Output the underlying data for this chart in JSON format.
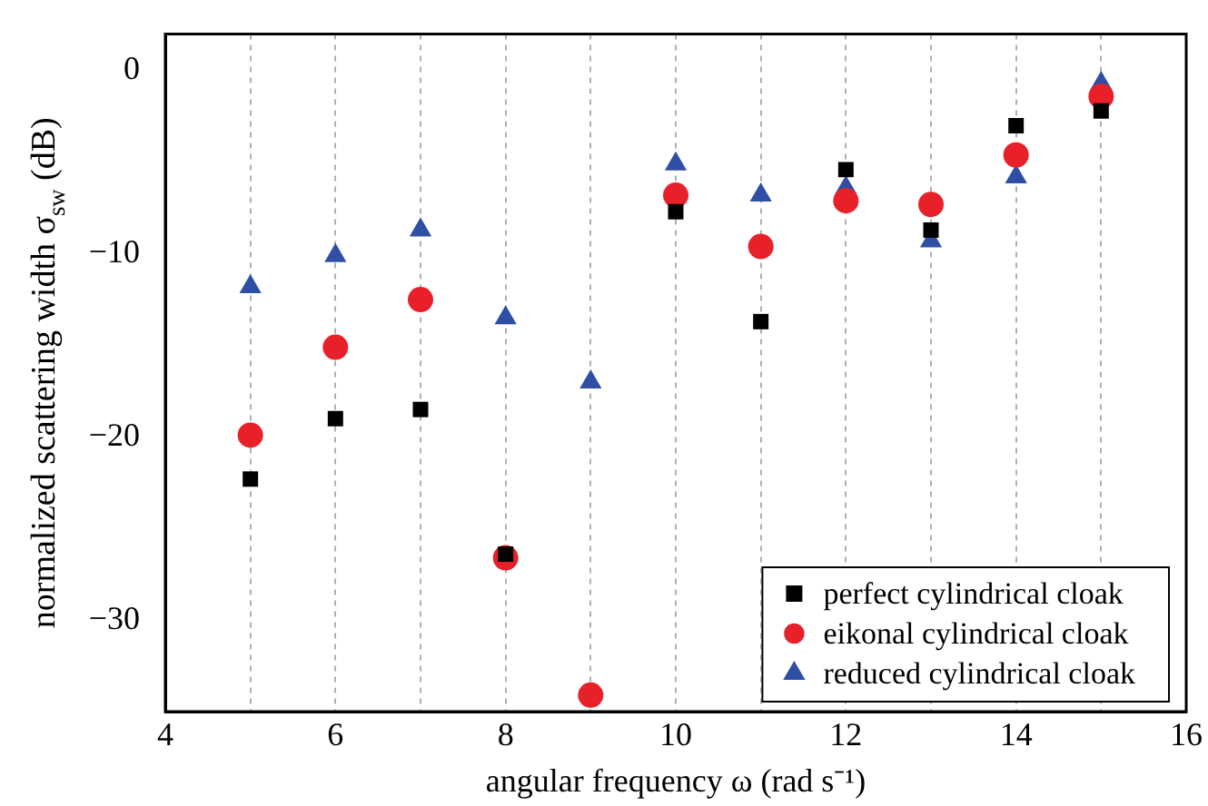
{
  "chart_data": {
    "type": "scatter",
    "xlabel": "angular frequency ω (rad s⁻¹)",
    "ylabel": "normalized scattering width σ$_{sw}$ (dB)",
    "x": [
      5,
      6,
      7,
      8,
      9,
      10,
      11,
      12,
      13,
      14,
      15
    ],
    "series": [
      {
        "name": "perfect cylindrical cloak",
        "color": "#000000",
        "marker": "square",
        "values": [
          -22.3,
          -19.0,
          -18.5,
          -26.4,
          null,
          -7.7,
          -13.7,
          -5.4,
          -8.7,
          -3.0,
          -2.2
        ]
      },
      {
        "name": "eikonal cylindrical cloak",
        "color": "#e8202a",
        "marker": "circle",
        "values": [
          -19.9,
          -15.1,
          -12.5,
          -26.6,
          -34.1,
          -6.8,
          -9.6,
          -7.1,
          -7.3,
          -4.6,
          -1.4
        ]
      },
      {
        "name": "reduced cylindrical cloak",
        "color": "#2e4fa3",
        "marker": "triangle",
        "values": [
          -11.8,
          -10.1,
          -8.7,
          -13.5,
          -17.0,
          -5.1,
          -6.8,
          -6.4,
          -9.3,
          -5.8,
          -0.7
        ]
      }
    ],
    "xlim": [
      4,
      16
    ],
    "xticks": [
      4,
      {
        "value": 5,
        "label": null
      },
      6,
      {
        "value": 7,
        "label": null
      },
      8,
      {
        "value": 9,
        "label": null
      },
      10,
      {
        "value": 11,
        "label": null
      },
      12,
      {
        "value": 13,
        "label": null
      },
      14,
      {
        "value": 15,
        "label": null
      },
      16
    ],
    "ylim": [
      -35,
      2
    ],
    "yticks": [
      -30,
      -20,
      -10,
      0
    ],
    "grid": "x",
    "legend": "bottom right"
  }
}
